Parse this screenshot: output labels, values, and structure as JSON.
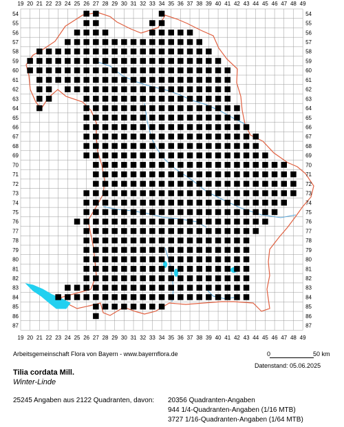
{
  "map": {
    "x_labels": [
      "19",
      "20",
      "21",
      "22",
      "23",
      "24",
      "25",
      "26",
      "27",
      "28",
      "29",
      "30",
      "31",
      "32",
      "33",
      "34",
      "35",
      "36",
      "37",
      "38",
      "39",
      "40",
      "41",
      "42",
      "43",
      "44",
      "45",
      "46",
      "47",
      "48",
      "49"
    ],
    "y_labels": [
      "54",
      "55",
      "56",
      "57",
      "58",
      "59",
      "60",
      "61",
      "62",
      "63",
      "64",
      "65",
      "66",
      "67",
      "68",
      "69",
      "70",
      "71",
      "72",
      "73",
      "74",
      "75",
      "76",
      "77",
      "78",
      "79",
      "80",
      "81",
      "82",
      "83",
      "84",
      "85",
      "86",
      "87"
    ],
    "colors": {
      "grid": "#999999",
      "border": "#e06040",
      "rivers": "#4aa0d8",
      "lake": "#22d0f0",
      "presence": "#000000"
    },
    "presence_rows": [
      {
        "row": "54",
        "cols": [
          "26",
          "27",
          "34"
        ]
      },
      {
        "row": "55",
        "cols": [
          "26",
          "27",
          "33",
          "34"
        ]
      },
      {
        "row": "56",
        "cols": [
          "25",
          "26",
          "27",
          "28",
          "33",
          "34",
          "35",
          "36",
          "37"
        ]
      },
      {
        "row": "57",
        "cols": [
          "24",
          "25",
          "26",
          "27",
          "28",
          "29",
          "30",
          "31",
          "32",
          "33",
          "34",
          "35",
          "36",
          "37",
          "38"
        ]
      },
      {
        "row": "58",
        "cols": [
          "21",
          "22",
          "23",
          "24",
          "25",
          "26",
          "27",
          "28",
          "29",
          "30",
          "31",
          "32",
          "33",
          "34",
          "35",
          "36",
          "37",
          "38",
          "39"
        ]
      },
      {
        "row": "59",
        "cols": [
          "20",
          "21",
          "22",
          "23",
          "24",
          "25",
          "26",
          "27",
          "28",
          "29",
          "30",
          "31",
          "32",
          "33",
          "34",
          "35",
          "36",
          "37",
          "38",
          "39",
          "40"
        ]
      },
      {
        "row": "60",
        "cols": [
          "20",
          "21",
          "22",
          "23",
          "24",
          "25",
          "26",
          "27",
          "28",
          "29",
          "30",
          "31",
          "32",
          "33",
          "34",
          "35",
          "36",
          "37",
          "38",
          "39",
          "40",
          "41"
        ]
      },
      {
        "row": "61",
        "cols": [
          "21",
          "22",
          "23",
          "24",
          "25",
          "26",
          "27",
          "28",
          "29",
          "30",
          "31",
          "32",
          "33",
          "34",
          "35",
          "36",
          "37",
          "38",
          "39",
          "40",
          "41"
        ]
      },
      {
        "row": "62",
        "cols": [
          "21",
          "22",
          "24",
          "25",
          "26",
          "27",
          "28",
          "29",
          "30",
          "31",
          "32",
          "33",
          "34",
          "35",
          "36",
          "37",
          "38",
          "39",
          "40",
          "41"
        ]
      },
      {
        "row": "63",
        "cols": [
          "21",
          "22",
          "26",
          "27",
          "28",
          "29",
          "30",
          "31",
          "32",
          "33",
          "34",
          "35",
          "36",
          "37",
          "38",
          "39",
          "40",
          "41"
        ]
      },
      {
        "row": "64",
        "cols": [
          "21",
          "26",
          "27",
          "28",
          "29",
          "30",
          "31",
          "32",
          "33",
          "34",
          "35",
          "36",
          "37",
          "38",
          "39",
          "40",
          "41",
          "42"
        ]
      },
      {
        "row": "65",
        "cols": [
          "26",
          "27",
          "28",
          "29",
          "30",
          "31",
          "32",
          "33",
          "34",
          "35",
          "36",
          "37",
          "38",
          "39",
          "40",
          "41",
          "42"
        ]
      },
      {
        "row": "66",
        "cols": [
          "26",
          "27",
          "28",
          "29",
          "30",
          "31",
          "32",
          "33",
          "34",
          "35",
          "36",
          "37",
          "38",
          "39",
          "40",
          "41",
          "42",
          "43"
        ]
      },
      {
        "row": "67",
        "cols": [
          "26",
          "27",
          "28",
          "29",
          "30",
          "31",
          "32",
          "33",
          "34",
          "35",
          "36",
          "37",
          "38",
          "39",
          "40",
          "41",
          "42",
          "43",
          "44"
        ]
      },
      {
        "row": "68",
        "cols": [
          "26",
          "27",
          "28",
          "29",
          "30",
          "31",
          "32",
          "33",
          "34",
          "35",
          "36",
          "37",
          "38",
          "39",
          "40",
          "41",
          "42",
          "43",
          "44"
        ]
      },
      {
        "row": "69",
        "cols": [
          "26",
          "27",
          "28",
          "29",
          "30",
          "31",
          "32",
          "33",
          "34",
          "35",
          "36",
          "37",
          "38",
          "39",
          "40",
          "41",
          "42",
          "43",
          "44",
          "45"
        ]
      },
      {
        "row": "70",
        "cols": [
          "27",
          "28",
          "29",
          "30",
          "31",
          "32",
          "33",
          "34",
          "35",
          "36",
          "37",
          "38",
          "39",
          "40",
          "41",
          "42",
          "43",
          "44",
          "45",
          "46",
          "47"
        ]
      },
      {
        "row": "71",
        "cols": [
          "27",
          "28",
          "29",
          "30",
          "31",
          "32",
          "33",
          "34",
          "35",
          "36",
          "37",
          "38",
          "39",
          "40",
          "41",
          "42",
          "43",
          "44",
          "45",
          "46",
          "47",
          "48"
        ]
      },
      {
        "row": "72",
        "cols": [
          "27",
          "28",
          "29",
          "30",
          "31",
          "32",
          "33",
          "34",
          "35",
          "36",
          "37",
          "38",
          "39",
          "40",
          "41",
          "42",
          "43",
          "44",
          "45",
          "46",
          "47",
          "48"
        ]
      },
      {
        "row": "73",
        "cols": [
          "26",
          "27",
          "28",
          "29",
          "30",
          "31",
          "32",
          "33",
          "34",
          "35",
          "36",
          "37",
          "38",
          "39",
          "40",
          "41",
          "42",
          "43",
          "44",
          "45",
          "46",
          "47",
          "48"
        ]
      },
      {
        "row": "74",
        "cols": [
          "26",
          "27",
          "28",
          "29",
          "30",
          "31",
          "32",
          "33",
          "34",
          "35",
          "36",
          "37",
          "38",
          "39",
          "40",
          "41",
          "42",
          "43",
          "44",
          "45",
          "46",
          "47"
        ]
      },
      {
        "row": "75",
        "cols": [
          "26",
          "27",
          "28",
          "29",
          "30",
          "31",
          "32",
          "33",
          "34",
          "35",
          "36",
          "37",
          "38",
          "39",
          "40",
          "41",
          "42",
          "43",
          "44",
          "45",
          "46"
        ]
      },
      {
        "row": "76",
        "cols": [
          "25",
          "26",
          "27",
          "28",
          "29",
          "30",
          "31",
          "32",
          "33",
          "34",
          "35",
          "36",
          "37",
          "38",
          "39",
          "40",
          "41",
          "42",
          "43",
          "44",
          "45"
        ]
      },
      {
        "row": "77",
        "cols": [
          "26",
          "27",
          "28",
          "29",
          "30",
          "31",
          "32",
          "33",
          "34",
          "35",
          "36",
          "37",
          "38",
          "39",
          "40",
          "41",
          "42",
          "43",
          "44"
        ]
      },
      {
        "row": "78",
        "cols": [
          "26",
          "27",
          "28",
          "29",
          "30",
          "31",
          "32",
          "33",
          "34",
          "35",
          "36",
          "37",
          "38",
          "39",
          "40",
          "41",
          "42",
          "43"
        ]
      },
      {
        "row": "79",
        "cols": [
          "26",
          "27",
          "28",
          "29",
          "30",
          "31",
          "32",
          "33",
          "34",
          "35",
          "36",
          "37",
          "38",
          "39",
          "40",
          "41",
          "42",
          "43"
        ]
      },
      {
        "row": "80",
        "cols": [
          "26",
          "27",
          "28",
          "29",
          "30",
          "31",
          "32",
          "33",
          "34",
          "35",
          "36",
          "37",
          "38",
          "39",
          "40",
          "41",
          "42",
          "43"
        ]
      },
      {
        "row": "81",
        "cols": [
          "26",
          "27",
          "28",
          "29",
          "30",
          "31",
          "32",
          "33",
          "34",
          "35",
          "36",
          "37",
          "38",
          "39",
          "40",
          "41",
          "42",
          "43"
        ]
      },
      {
        "row": "82",
        "cols": [
          "26",
          "27",
          "28",
          "29",
          "30",
          "31",
          "32",
          "33",
          "34",
          "35",
          "36",
          "37",
          "38",
          "39",
          "40",
          "41",
          "42",
          "43"
        ]
      },
      {
        "row": "83",
        "cols": [
          "24",
          "25",
          "26",
          "27",
          "28",
          "29",
          "30",
          "31",
          "32",
          "33",
          "34",
          "35",
          "36",
          "37",
          "38",
          "39",
          "40",
          "41",
          "42",
          "43"
        ]
      },
      {
        "row": "84",
        "cols": [
          "23",
          "24",
          "25",
          "26",
          "27",
          "28",
          "29",
          "30",
          "31",
          "32",
          "33",
          "34",
          "35",
          "36",
          "37",
          "38",
          "39",
          "40",
          "41",
          "42",
          "43"
        ]
      },
      {
        "row": "85",
        "cols": [
          "27",
          "28",
          "29",
          "30",
          "31",
          "32",
          "33",
          "34"
        ]
      },
      {
        "row": "86",
        "cols": [
          "27"
        ]
      }
    ]
  },
  "footer": {
    "credit": "Arbeitsgemeinschaft Flora von Bayern - www.bayernflora.de",
    "scale_start": "0",
    "scale_end": "50 km",
    "datenstand": "Datenstand: 05.06.2025",
    "taxon_name": "Tilia cordata Mill.",
    "common_name": "Winter-Linde",
    "summary_total": "25245 Angaben aus 2122 Quadranten, davon:",
    "summary_quadrant": "20356 Quadranten-Angaben",
    "summary_quarter": "944 1/4-Quadranten-Angaben (1/16 MTB)",
    "summary_sixteenth": "3727 1/16-Quadranten-Angaben (1/64 MTB)"
  }
}
